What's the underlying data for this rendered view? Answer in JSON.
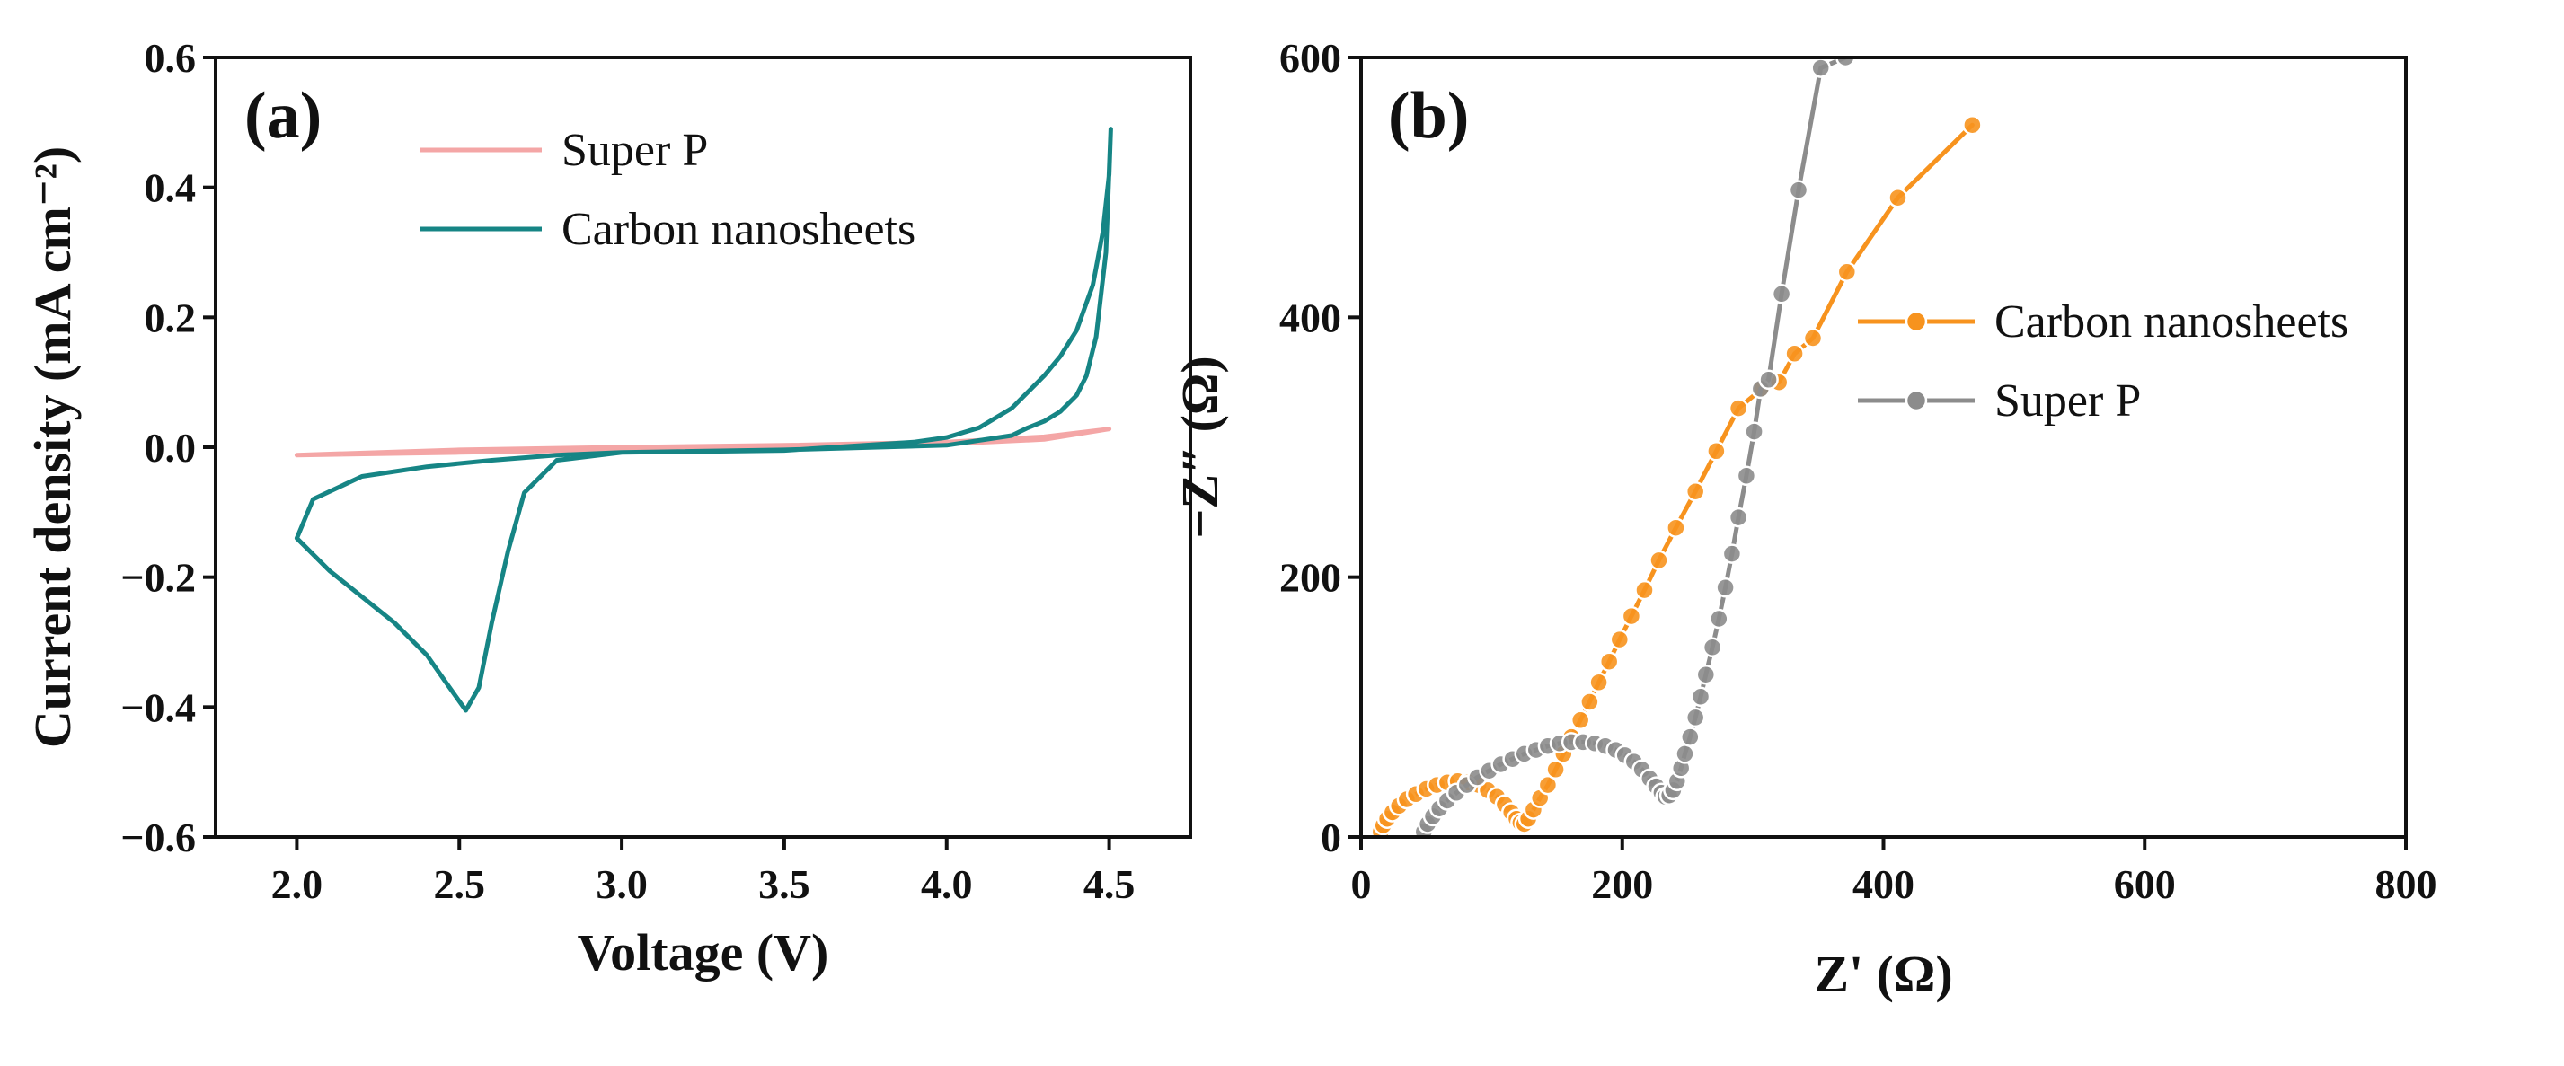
{
  "chart_data": [
    {
      "type": "line",
      "panel_label": "(a)",
      "xlabel": "Voltage (V)",
      "ylabel": "Current density (mA cm⁻²)",
      "xlim": [
        1.75,
        4.75
      ],
      "ylim": [
        -0.6,
        0.6
      ],
      "xticks": [
        2.0,
        2.5,
        3.0,
        3.5,
        4.0,
        4.5
      ],
      "xtick_labels": [
        "2.0",
        "2.5",
        "3.0",
        "3.5",
        "4.0",
        "4.5"
      ],
      "yticks": [
        -0.6,
        -0.4,
        -0.2,
        0.0,
        0.2,
        0.4,
        0.6
      ],
      "ytick_labels": [
        "−0.6",
        "−0.4",
        "−0.2",
        "0.0",
        "0.2",
        "0.4",
        "0.6"
      ],
      "legend_position": "top-center",
      "series": [
        {
          "name": "Super P",
          "color": "#f4a6a6",
          "x": [
            2.0,
            2.5,
            3.0,
            3.5,
            4.0,
            4.3,
            4.5,
            4.3,
            4.0,
            3.5,
            3.0,
            2.5,
            2.0
          ],
          "y": [
            -0.012,
            -0.008,
            -0.004,
            0.0,
            0.005,
            0.012,
            0.028,
            0.016,
            0.008,
            0.003,
            0.0,
            -0.004,
            -0.012
          ]
        },
        {
          "name": "Carbon nanosheets",
          "color": "#168585",
          "x": [
            2.0,
            2.1,
            2.2,
            2.3,
            2.4,
            2.47,
            2.52,
            2.56,
            2.6,
            2.65,
            2.7,
            2.8,
            3.0,
            3.5,
            3.9,
            4.0,
            4.1,
            4.2,
            4.3,
            4.35,
            4.4,
            4.45,
            4.48,
            4.5,
            4.505,
            4.49,
            4.46,
            4.43,
            4.4,
            4.35,
            4.3,
            4.25,
            4.2,
            4.0,
            3.5,
            3.0,
            2.8,
            2.6,
            2.4,
            2.2,
            2.05,
            2.0
          ],
          "y": [
            -0.14,
            -0.19,
            -0.23,
            -0.27,
            -0.32,
            -0.37,
            -0.405,
            -0.37,
            -0.27,
            -0.16,
            -0.07,
            -0.02,
            -0.008,
            -0.005,
            0.008,
            0.015,
            0.03,
            0.06,
            0.11,
            0.14,
            0.18,
            0.25,
            0.33,
            0.42,
            0.49,
            0.3,
            0.17,
            0.11,
            0.08,
            0.055,
            0.04,
            0.03,
            0.018,
            0.003,
            -0.004,
            -0.008,
            -0.012,
            -0.02,
            -0.03,
            -0.045,
            -0.08,
            -0.14
          ]
        }
      ]
    },
    {
      "type": "scatter",
      "panel_label": "(b)",
      "xlabel": "Z' (Ω)",
      "ylabel": "−Z″ (Ω)",
      "xlim": [
        0,
        800
      ],
      "ylim": [
        0,
        600
      ],
      "xticks": [
        0,
        200,
        400,
        600,
        800
      ],
      "xtick_labels": [
        "0",
        "200",
        "400",
        "600",
        "800"
      ],
      "yticks": [
        0,
        200,
        400,
        600
      ],
      "ytick_labels": [
        "0",
        "200",
        "400",
        "600"
      ],
      "legend_position": "center-right",
      "series": [
        {
          "name": "Carbon nanosheets",
          "color": "#f7931e",
          "x": [
            15,
            17,
            20,
            24,
            29,
            35,
            42,
            50,
            58,
            66,
            74,
            82,
            90,
            97,
            104,
            110,
            115,
            119,
            122,
            125,
            128,
            132,
            137,
            143,
            149,
            155,
            161,
            168,
            175,
            182,
            190,
            198,
            207,
            217,
            228,
            241,
            256,
            272,
            289,
            307,
            320,
            332,
            346,
            372,
            411,
            468
          ],
          "y": [
            4,
            9,
            14,
            19,
            24,
            29,
            33,
            37,
            40,
            42,
            43,
            42,
            40,
            36,
            31,
            25,
            19,
            14,
            11,
            10,
            14,
            21,
            30,
            40,
            52,
            64,
            77,
            90,
            104,
            119,
            135,
            152,
            170,
            190,
            213,
            238,
            266,
            297,
            330,
            345,
            350,
            372,
            384,
            435,
            492,
            548
          ]
        },
        {
          "name": "Super P",
          "color": "#8c8c8c",
          "x": [
            48,
            51,
            55,
            60,
            66,
            73,
            81,
            89,
            98,
            107,
            116,
            125,
            134,
            143,
            152,
            161,
            170,
            179,
            187,
            195,
            202,
            209,
            215,
            221,
            226,
            230,
            233,
            236,
            239,
            242,
            245,
            248,
            252,
            256,
            260,
            264,
            269,
            274,
            279,
            284,
            289,
            295,
            301,
            306,
            312,
            322,
            335,
            352,
            371
          ],
          "y": [
            4,
            10,
            16,
            22,
            28,
            34,
            40,
            46,
            51,
            56,
            60,
            64,
            67,
            70,
            72,
            73,
            73,
            72,
            70,
            67,
            63,
            58,
            52,
            45,
            39,
            34,
            31,
            32,
            36,
            43,
            53,
            64,
            77,
            92,
            108,
            125,
            146,
            168,
            192,
            218,
            246,
            278,
            312,
            345,
            352,
            418,
            498,
            592,
            600
          ]
        }
      ]
    }
  ]
}
